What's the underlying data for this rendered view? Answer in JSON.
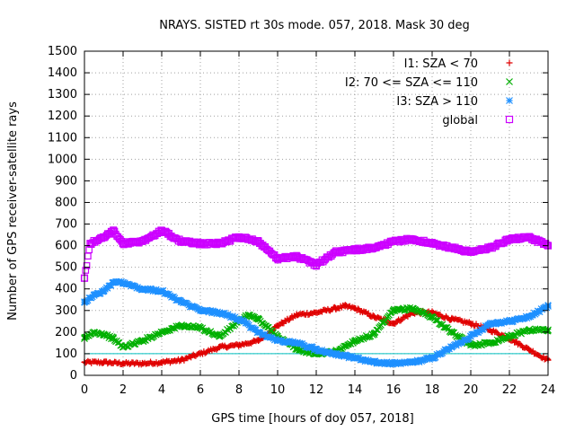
{
  "chart_data": {
    "type": "scatter",
    "title": "NRAYS. SISTED rt 30s mode. 057, 2018. Mask 30 deg",
    "xlabel": "GPS time [hours of doy 057, 2018]",
    "ylabel": "Number of GPS receiver-satellite rays",
    "xlim": [
      0,
      24
    ],
    "ylim": [
      0,
      1500
    ],
    "xticks": [
      "0",
      "2",
      "4",
      "6",
      "8",
      "10",
      "12",
      "14",
      "16",
      "18",
      "20",
      "22",
      "24"
    ],
    "yticks": [
      "0",
      "100",
      "200",
      "300",
      "400",
      "500",
      "600",
      "700",
      "800",
      "900",
      "1000",
      "1100",
      "1200",
      "1300",
      "1400",
      "1500"
    ],
    "grid": true,
    "legend_position": "top-right",
    "reference_line": {
      "y": 100,
      "color": "#00bfbf"
    },
    "series": [
      {
        "name": "I1: SZA < 70",
        "marker": "+",
        "color": "#e00000",
        "x": [
          0,
          1,
          2,
          3,
          4,
          5,
          6,
          7,
          8,
          9,
          10,
          11,
          12,
          13,
          13.5,
          14,
          15,
          16,
          17,
          18,
          19,
          20,
          21,
          22,
          23,
          24
        ],
        "y": [
          60,
          60,
          55,
          55,
          60,
          70,
          100,
          130,
          140,
          160,
          230,
          280,
          290,
          310,
          320,
          310,
          270,
          240,
          290,
          290,
          260,
          240,
          210,
          170,
          120,
          70
        ]
      },
      {
        "name": "I2: 70 <= SZA <= 110",
        "marker": "x",
        "color": "#00b000",
        "x": [
          0,
          0.5,
          1,
          1.5,
          2,
          3,
          4,
          5,
          6,
          7,
          8,
          8.5,
          9,
          10,
          11,
          12,
          13,
          14,
          15,
          16,
          17,
          18,
          19,
          20,
          21,
          22,
          23,
          24
        ],
        "y": [
          170,
          200,
          190,
          170,
          130,
          160,
          200,
          230,
          220,
          180,
          250,
          280,
          260,
          180,
          120,
          100,
          110,
          160,
          190,
          300,
          310,
          270,
          200,
          140,
          150,
          180,
          210,
          210
        ]
      },
      {
        "name": "I3: SZA > 110",
        "marker": "*",
        "color": "#1e90ff",
        "x": [
          0,
          0.5,
          1,
          1.5,
          2,
          3,
          4,
          5,
          6,
          7,
          8,
          9,
          10,
          11,
          12,
          13,
          14,
          15,
          16,
          17,
          18,
          19,
          20,
          21,
          22,
          23,
          24
        ],
        "y": [
          340,
          370,
          390,
          430,
          430,
          400,
          390,
          340,
          300,
          290,
          260,
          200,
          160,
          150,
          120,
          100,
          80,
          60,
          55,
          60,
          80,
          130,
          180,
          240,
          250,
          270,
          320
        ]
      },
      {
        "name": "global",
        "marker": "square",
        "color": "#cc00ff",
        "x": [
          0,
          0.3,
          1,
          1.5,
          2,
          3,
          4,
          5,
          6,
          7,
          8,
          9,
          10,
          11,
          12,
          13,
          14,
          15,
          16,
          17,
          18,
          19,
          20,
          21,
          22,
          23,
          24
        ],
        "y": [
          450,
          610,
          640,
          670,
          610,
          620,
          670,
          620,
          610,
          610,
          640,
          620,
          540,
          550,
          510,
          570,
          580,
          590,
          620,
          630,
          610,
          590,
          570,
          590,
          630,
          640,
          600
        ]
      }
    ]
  }
}
